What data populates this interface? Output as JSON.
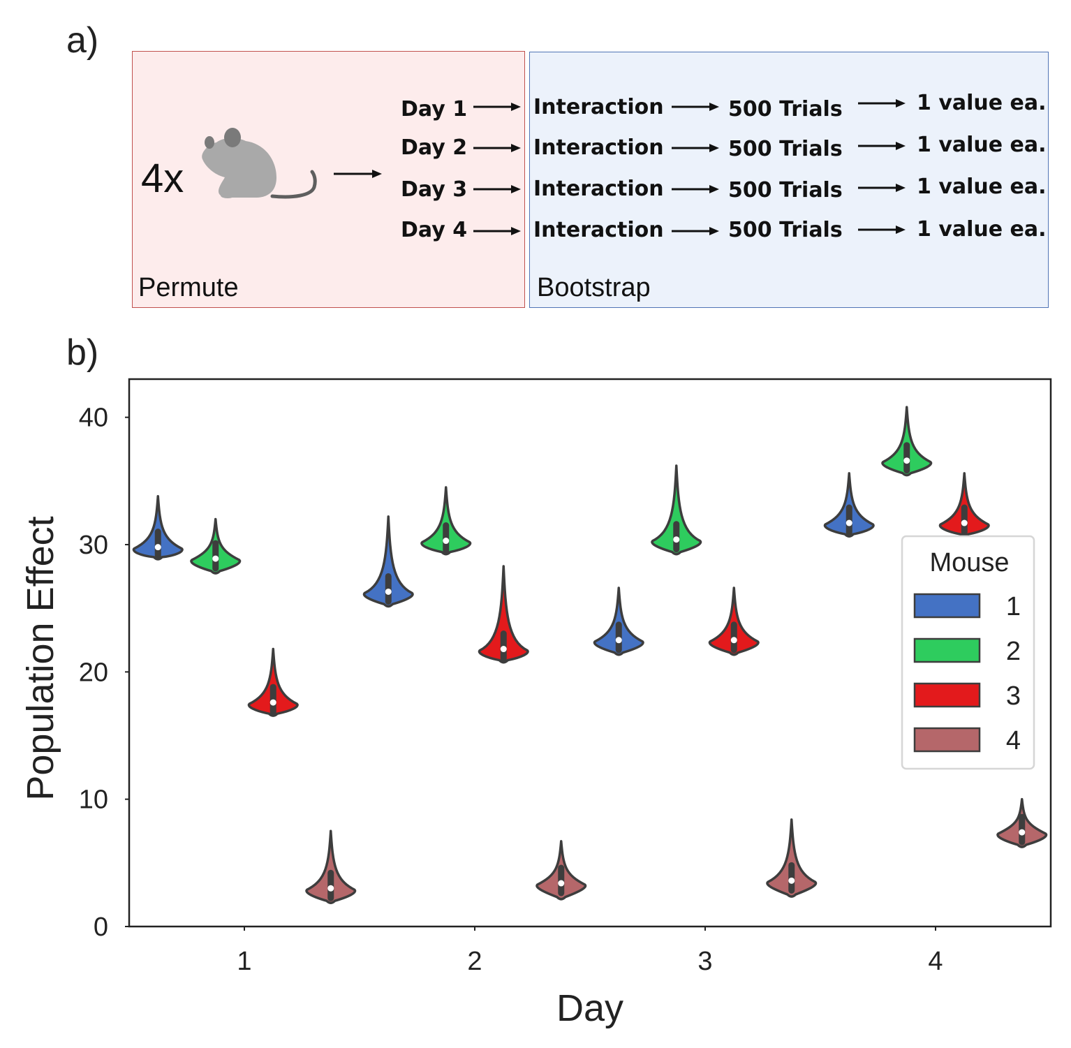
{
  "panel_a": {
    "letter": "a)",
    "permute_label": "Permute",
    "bootstrap_label": "Bootstrap",
    "multiplier": "4x",
    "rows": [
      {
        "day": "Day 1",
        "step1": "Interaction",
        "step2": "500 Trials",
        "step3": "1 value ea."
      },
      {
        "day": "Day 2",
        "step1": "Interaction",
        "step2": "500 Trials",
        "step3": "1 value ea."
      },
      {
        "day": "Day 3",
        "step1": "Interaction",
        "step2": "500 Trials",
        "step3": "1 value ea."
      },
      {
        "day": "Day 4",
        "step1": "Interaction",
        "step2": "500 Trials",
        "step3": "1 value ea."
      }
    ],
    "icon": "mouse-icon",
    "colors": {
      "permute_bg": "#fdecec",
      "permute_border": "#c0504d",
      "bootstrap_bg": "#ecf2fb",
      "bootstrap_border": "#4f74b5"
    }
  },
  "panel_b": {
    "letter": "b)"
  },
  "chart_data": {
    "type": "violin",
    "xlabel": "Day",
    "ylabel": "Population Effect",
    "categories": [
      "1",
      "2",
      "3",
      "4"
    ],
    "ylim": [
      0,
      43
    ],
    "yticks": [
      0,
      10,
      20,
      30,
      40
    ],
    "grid": false,
    "legend": {
      "title": "Mouse",
      "placement": "right"
    },
    "series": [
      {
        "name": "1",
        "color": "#4472c4",
        "medians": [
          29.8,
          26.3,
          22.5,
          31.7
        ],
        "maxima": [
          33.8,
          32.2,
          26.6,
          35.6
        ],
        "minima": [
          28.8,
          25.1,
          21.3,
          30.6
        ]
      },
      {
        "name": "2",
        "color": "#2ecc5e",
        "medians": [
          28.9,
          30.3,
          30.4,
          36.6
        ],
        "maxima": [
          32.0,
          34.5,
          36.2,
          40.8
        ],
        "minima": [
          27.7,
          29.2,
          29.2,
          35.4
        ]
      },
      {
        "name": "3",
        "color": "#e31a1c",
        "medians": [
          17.6,
          21.8,
          22.5,
          31.7
        ],
        "maxima": [
          21.8,
          28.3,
          26.6,
          35.6
        ],
        "minima": [
          16.5,
          20.7,
          21.3,
          30.6
        ]
      },
      {
        "name": "4",
        "color": "#b5676a",
        "medians": [
          3.0,
          3.4,
          3.6,
          7.4
        ],
        "maxima": [
          7.5,
          6.7,
          8.4,
          10.0
        ],
        "minima": [
          1.8,
          2.1,
          2.3,
          6.2
        ]
      }
    ]
  }
}
